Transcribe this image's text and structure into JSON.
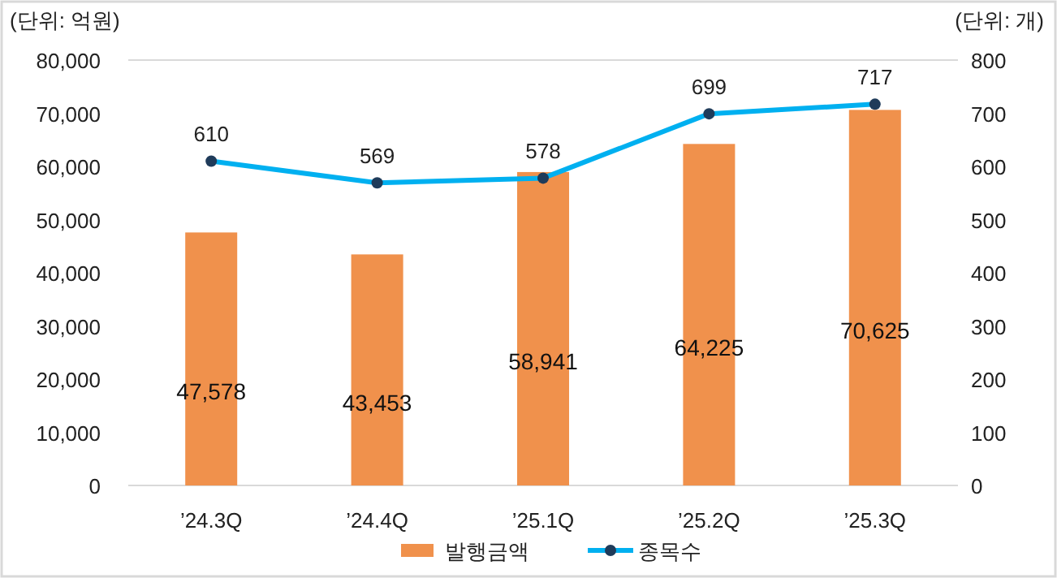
{
  "chart_data": {
    "type": "bar",
    "ylabel": "(단위: 억원)",
    "y2label": "(단위: 개)",
    "categories": [
      "’24.3Q",
      "’24.4Q",
      "’25.1Q",
      "’25.2Q",
      "’25.3Q"
    ],
    "series": [
      {
        "name": "발행금액",
        "color": "#f0914c",
        "values": [
          47578,
          43453,
          58941,
          64225,
          70625
        ],
        "value_labels": [
          "47,578",
          "43,453",
          "58,941",
          "64,225",
          "70,625"
        ]
      },
      {
        "name": "종목수",
        "type": "line",
        "axis": "y2",
        "color": "#00b0f0",
        "marker": "circle",
        "values": [
          610,
          569,
          578,
          699,
          717
        ]
      }
    ],
    "ylim": [
      0,
      80000
    ],
    "yticks": [
      {
        "value": 0,
        "label": "0"
      },
      {
        "value": 10000,
        "label": "10,000"
      },
      {
        "value": 20000,
        "label": "20,000"
      },
      {
        "value": 30000,
        "label": "30,000"
      },
      {
        "value": 40000,
        "label": "40,000"
      },
      {
        "value": 50000,
        "label": "50,000"
      },
      {
        "value": 60000,
        "label": "60,000"
      },
      {
        "value": 70000,
        "label": "70,000"
      },
      {
        "value": 80000,
        "label": "80,000"
      }
    ],
    "y2lim": [
      0,
      800
    ],
    "y2ticks": [
      0,
      100,
      200,
      300,
      400,
      500,
      600,
      700,
      800
    ],
    "data_labels": true,
    "legend": "bottom",
    "grid": false
  }
}
